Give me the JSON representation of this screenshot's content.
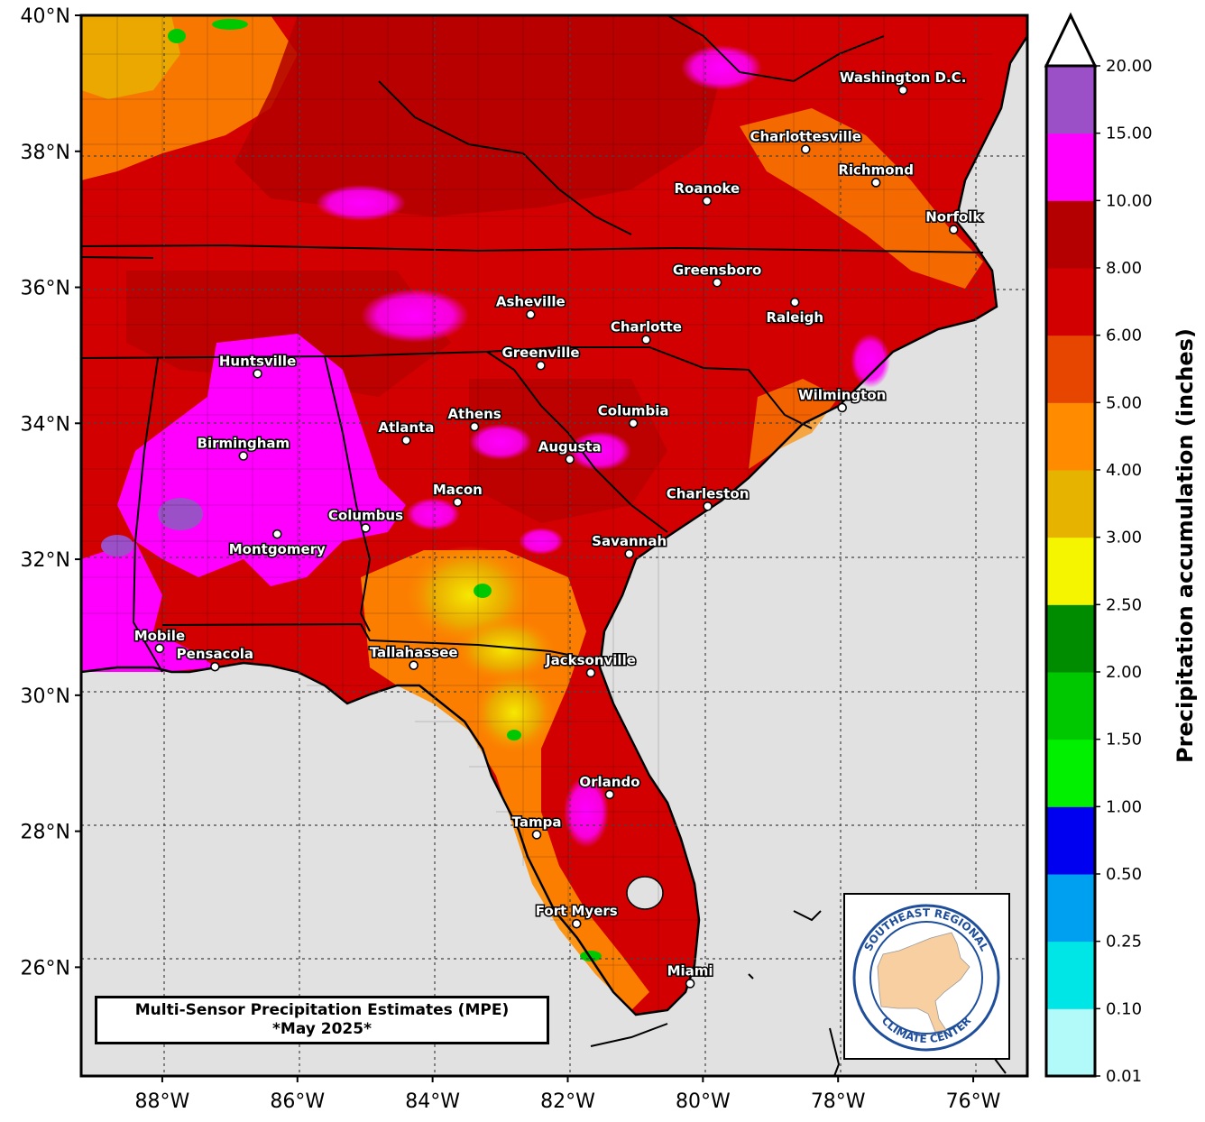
{
  "chart_data": {
    "type": "map",
    "title": "Multi-Sensor Precipitation Estimates (MPE)",
    "subtitle": "*May 2025*",
    "colorbar_label": "Precipitation accumulation (inches)",
    "colorbar_levels": [
      "0.01",
      "0.10",
      "0.25",
      "0.50",
      "1.00",
      "1.50",
      "2.00",
      "2.50",
      "3.00",
      "4.00",
      "5.00",
      "6.00",
      "8.00",
      "10.00",
      "15.00",
      "20.00"
    ],
    "colorbar_colors": [
      "#b2fafa",
      "#00e6e6",
      "#00a0f0",
      "#0000f0",
      "#00f000",
      "#00c800",
      "#008c00",
      "#f5f500",
      "#e6b400",
      "#ff8c00",
      "#e64600",
      "#d20000",
      "#b40000",
      "#ff00ff",
      "#9b50c8"
    ],
    "lon_ticks": [
      "88°W",
      "86°W",
      "84°W",
      "82°W",
      "80°W",
      "78°W",
      "76°W"
    ],
    "lat_ticks": [
      "40°N",
      "38°N",
      "36°N",
      "34°N",
      "32°N",
      "30°N",
      "28°N",
      "26°N"
    ],
    "lon_range": [
      -89.2,
      -75.2
    ],
    "lat_range": [
      24.4,
      40.0
    ],
    "cities": [
      {
        "name": "Washington D.C.",
        "lon": -77.04,
        "lat": 38.9
      },
      {
        "name": "Charlottesville",
        "lon": -78.48,
        "lat": 38.03
      },
      {
        "name": "Richmond",
        "lon": -77.44,
        "lat": 37.54
      },
      {
        "name": "Roanoke",
        "lon": -79.94,
        "lat": 37.27
      },
      {
        "name": "Norfolk",
        "lon": -76.29,
        "lat": 36.85
      },
      {
        "name": "Greensboro",
        "lon": -79.79,
        "lat": 36.07
      },
      {
        "name": "Raleigh",
        "lon": -78.64,
        "lat": 35.78
      },
      {
        "name": "Asheville",
        "lon": -82.55,
        "lat": 35.6
      },
      {
        "name": "Charlotte",
        "lon": -80.84,
        "lat": 35.23
      },
      {
        "name": "Greenville",
        "lon": -82.4,
        "lat": 34.85
      },
      {
        "name": "Huntsville",
        "lon": -86.59,
        "lat": 34.73
      },
      {
        "name": "Wilmington",
        "lon": -77.94,
        "lat": 34.23
      },
      {
        "name": "Columbia",
        "lon": -81.03,
        "lat": 34.0
      },
      {
        "name": "Athens",
        "lon": -83.38,
        "lat": 33.95
      },
      {
        "name": "Atlanta",
        "lon": -84.39,
        "lat": 33.75
      },
      {
        "name": "Birmingham",
        "lon": -86.8,
        "lat": 33.52
      },
      {
        "name": "Augusta",
        "lon": -81.97,
        "lat": 33.47
      },
      {
        "name": "Macon",
        "lon": -83.63,
        "lat": 32.84
      },
      {
        "name": "Charleston",
        "lon": -79.93,
        "lat": 32.78
      },
      {
        "name": "Columbus",
        "lon": -84.99,
        "lat": 32.46
      },
      {
        "name": "Montgomery",
        "lon": -86.3,
        "lat": 32.37
      },
      {
        "name": "Savannah",
        "lon": -81.09,
        "lat": 32.08
      },
      {
        "name": "Mobile",
        "lon": -88.04,
        "lat": 30.69
      },
      {
        "name": "Pensacola",
        "lon": -87.22,
        "lat": 30.42
      },
      {
        "name": "Tallahassee",
        "lon": -84.28,
        "lat": 30.44
      },
      {
        "name": "Jacksonville",
        "lon": -81.66,
        "lat": 30.33
      },
      {
        "name": "Orlando",
        "lon": -81.38,
        "lat": 28.54
      },
      {
        "name": "Tampa",
        "lon": -82.46,
        "lat": 27.95
      },
      {
        "name": "Fort Myers",
        "lon": -81.87,
        "lat": 26.64
      },
      {
        "name": "Miami",
        "lon": -80.19,
        "lat": 25.76
      }
    ]
  },
  "logo": {
    "top_text": "SOUTHEAST REGIONAL",
    "bottom_text": "CLIMATE CENTER"
  }
}
